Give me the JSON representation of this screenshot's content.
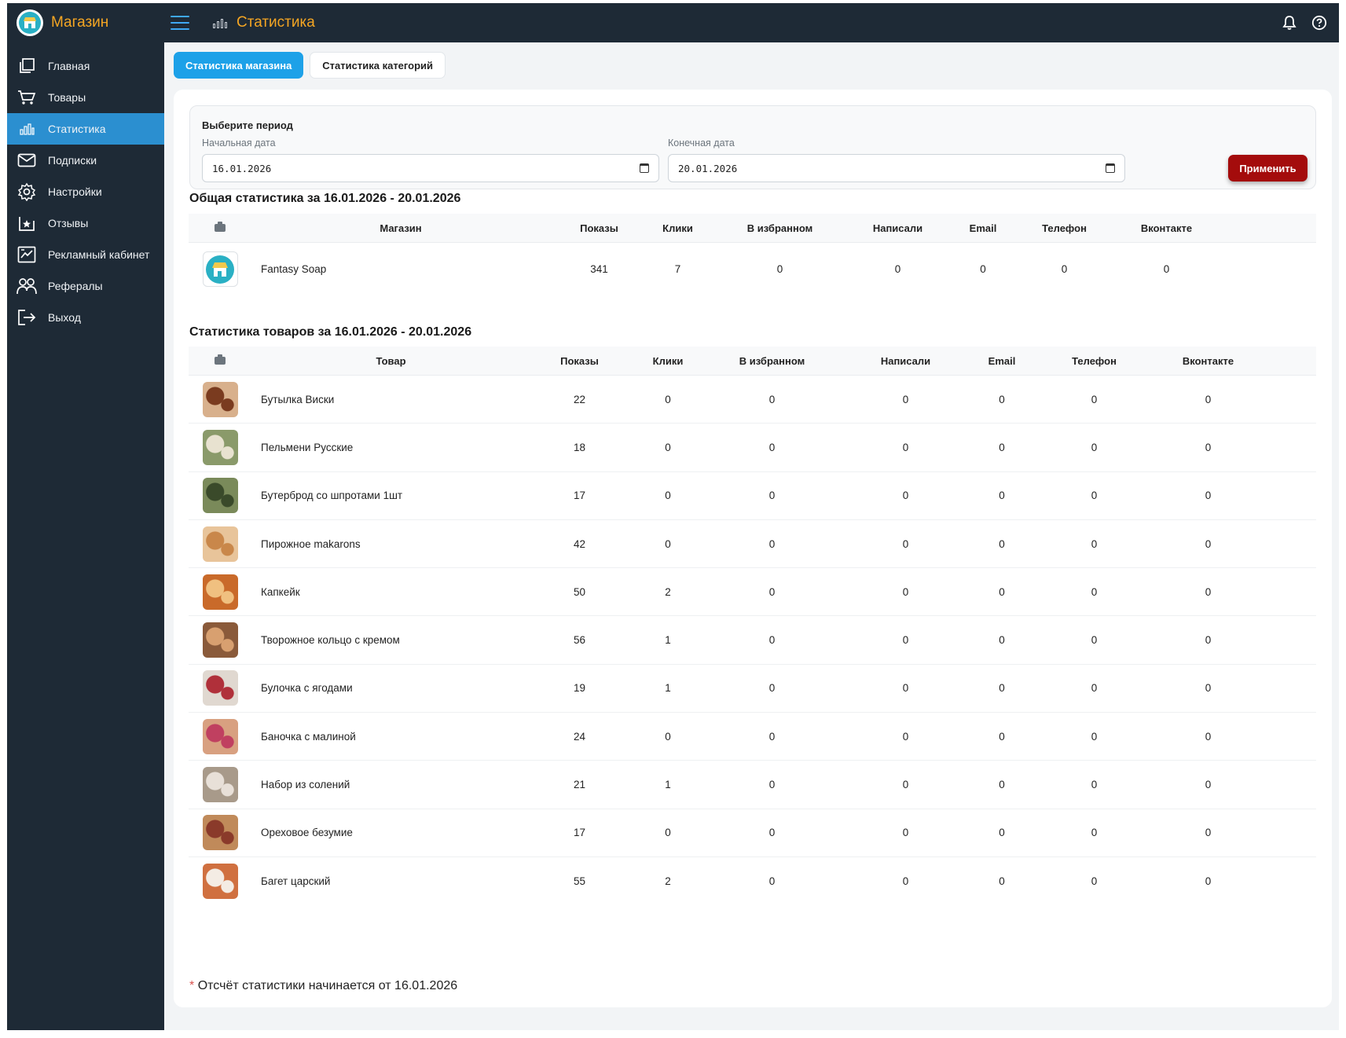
{
  "header": {
    "brand": "Магазин",
    "page_title": "Статистика"
  },
  "sidebar": {
    "items": [
      {
        "label": "Главная",
        "icon": "home-copy-icon"
      },
      {
        "label": "Товары",
        "icon": "cart-icon"
      },
      {
        "label": "Статистика",
        "icon": "bar-chart-icon",
        "active": true
      },
      {
        "label": "Подписки",
        "icon": "envelope-icon"
      },
      {
        "label": "Настройки",
        "icon": "gear-icon"
      },
      {
        "label": "Отзывы",
        "icon": "review-star-icon"
      },
      {
        "label": "Рекламный кабинет",
        "icon": "ad-chart-icon"
      },
      {
        "label": "Рефералы",
        "icon": "people-icon"
      },
      {
        "label": "Выход",
        "icon": "logout-icon"
      }
    ]
  },
  "tabs": {
    "store": "Статистика магазина",
    "categories": "Статистика категорий"
  },
  "period": {
    "title": "Выберите период",
    "start_label": "Начальная дата",
    "start_value": "16.01.2026",
    "end_label": "Конечная дата",
    "end_value": "20.01.2026",
    "apply": "Применить"
  },
  "store_stats": {
    "title": "Общая статистика за 16.01.2026 - 20.01.2026",
    "columns": [
      "Магазин",
      "Показы",
      "Клики",
      "В избранном",
      "Написали",
      "Email",
      "Телефон",
      "Вконтакте"
    ],
    "rows": [
      {
        "name": "Fantasy Soap",
        "views": "341",
        "clicks": "7",
        "fav": "0",
        "wrote": "0",
        "email": "0",
        "phone": "0",
        "vk": "0"
      }
    ]
  },
  "product_stats": {
    "title": "Статистика товаров за 16.01.2026 - 20.01.2026",
    "columns": [
      "Товар",
      "Показы",
      "Клики",
      "В избранном",
      "Написали",
      "Email",
      "Телефон",
      "Вконтакте"
    ],
    "rows": [
      {
        "name": "Бутылка Виски",
        "views": "22",
        "clicks": "0",
        "fav": "0",
        "wrote": "0",
        "email": "0",
        "phone": "0",
        "vk": "0"
      },
      {
        "name": "Пельмени Русские",
        "views": "18",
        "clicks": "0",
        "fav": "0",
        "wrote": "0",
        "email": "0",
        "phone": "0",
        "vk": "0"
      },
      {
        "name": "Бутерброд со шпротами 1шт",
        "views": "17",
        "clicks": "0",
        "fav": "0",
        "wrote": "0",
        "email": "0",
        "phone": "0",
        "vk": "0"
      },
      {
        "name": "Пирожное makarons",
        "views": "42",
        "clicks": "0",
        "fav": "0",
        "wrote": "0",
        "email": "0",
        "phone": "0",
        "vk": "0"
      },
      {
        "name": "Капкейк",
        "views": "50",
        "clicks": "2",
        "fav": "0",
        "wrote": "0",
        "email": "0",
        "phone": "0",
        "vk": "0"
      },
      {
        "name": "Творожное кольцо с кремом",
        "views": "56",
        "clicks": "1",
        "fav": "0",
        "wrote": "0",
        "email": "0",
        "phone": "0",
        "vk": "0"
      },
      {
        "name": "Булочка с ягодами",
        "views": "19",
        "clicks": "1",
        "fav": "0",
        "wrote": "0",
        "email": "0",
        "phone": "0",
        "vk": "0"
      },
      {
        "name": "Баночка с малиной",
        "views": "24",
        "clicks": "0",
        "fav": "0",
        "wrote": "0",
        "email": "0",
        "phone": "0",
        "vk": "0"
      },
      {
        "name": "Набор из солений",
        "views": "21",
        "clicks": "1",
        "fav": "0",
        "wrote": "0",
        "email": "0",
        "phone": "0",
        "vk": "0"
      },
      {
        "name": "Ореховое безумие",
        "views": "17",
        "clicks": "0",
        "fav": "0",
        "wrote": "0",
        "email": "0",
        "phone": "0",
        "vk": "0"
      },
      {
        "name": "Багет царский",
        "views": "55",
        "clicks": "2",
        "fav": "0",
        "wrote": "0",
        "email": "0",
        "phone": "0",
        "vk": "0"
      }
    ]
  },
  "footnote": {
    "star": "*",
    "text": "Отсчёт статистики начинается от 16.01.2026"
  },
  "colors": {
    "sidebar_bg": "#1e2a36",
    "accent_orange": "#f5a623",
    "active_blue": "#2b8fd0",
    "tab_blue": "#1da1e8",
    "apply_red": "#a40c0c"
  }
}
